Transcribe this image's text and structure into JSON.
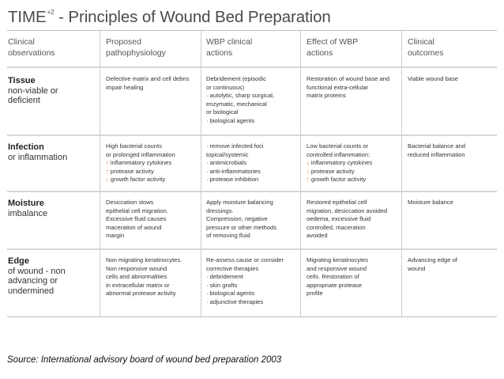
{
  "title": {
    "main": "TIME",
    "sup": "+2",
    "rest": " - Principles of Wound Bed Preparation"
  },
  "headers": [
    [
      "Clinical",
      "observations"
    ],
    [
      "Proposed",
      "pathophysiology"
    ],
    [
      "WBP clinical",
      "actions"
    ],
    [
      "Effect of WBP",
      "actions"
    ],
    [
      "Clinical",
      "outcomes"
    ]
  ],
  "rows": [
    {
      "label_main": "Tissue",
      "label_sub": [
        "non-viable or",
        "deficient"
      ],
      "cells": [
        [
          "Defective matrix and cell debris",
          "impair healing"
        ],
        [
          "Debridement (episodic",
          "or continuous)",
          "· autolytic, sharp surgical,",
          "  enzymatic, mechanical",
          "  or biological",
          "· biological agents"
        ],
        [
          "Restoration of wound base and",
          "functional extra-cellular",
          "matrix proteins"
        ],
        [
          "Viable wound base"
        ]
      ]
    },
    {
      "label_main": "Infection",
      "label_sub": [
        "or inflammation"
      ],
      "cells": [
        [
          "High bacterial counts",
          "or prolonged inflammation",
          "↑ inflammatory cytokines",
          "↑ protease activity",
          "↓ growth factor activity"
        ],
        [
          "· remove infected foci",
          "  topical/systemic",
          "· antimicrobials",
          "· anti-inflammatories",
          "· protease inhibition"
        ],
        [
          "Low bacterial counts or",
          "controlled inflammation:",
          "↓ inflammatory cytokines",
          "↓ protease activity",
          "↑ growth factor activity"
        ],
        [
          "Bacterial balance and",
          "reduced inflammation"
        ]
      ]
    },
    {
      "label_main": "Moisture",
      "label_sub": [
        "imbalance"
      ],
      "cells": [
        [
          "Desiccation slows",
          "epithelial cell migration.",
          "Excessive fluid causes",
          "maceration of wound",
          "margin"
        ],
        [
          "Apply moisture balancing",
          "dressings.",
          "Compression, negative",
          "pressure or other methods",
          "of removing fluid"
        ],
        [
          "Restored epithelial cell",
          "migration, desiccation avoided",
          "oedema, excessive fluid",
          "controlled, maceration",
          "avoided"
        ],
        [
          "Moisture balance"
        ]
      ]
    },
    {
      "label_main": "Edge",
      "label_sub": [
        "of wound - non",
        "advancing or",
        "undermined"
      ],
      "cells": [
        [
          "Non migrating keratinocytes.",
          "Non responsive wound",
          "cells and abnormalities",
          "in extracellular matrix or",
          "abnormal protease activity"
        ],
        [
          "Re-assess cause or consider",
          "corrective therapies",
          "· debridement",
          "· skin grafts",
          "· biological agents",
          "· adjunctive therapies"
        ],
        [
          "Migrating keratinocytes",
          "and responsive wound",
          "cells. Restoration of",
          "appropriate protease",
          "profile"
        ],
        [
          "Advancing edge of",
          "wound"
        ]
      ]
    }
  ],
  "source": "Source: International advisory board of wound bed preparation 2003"
}
